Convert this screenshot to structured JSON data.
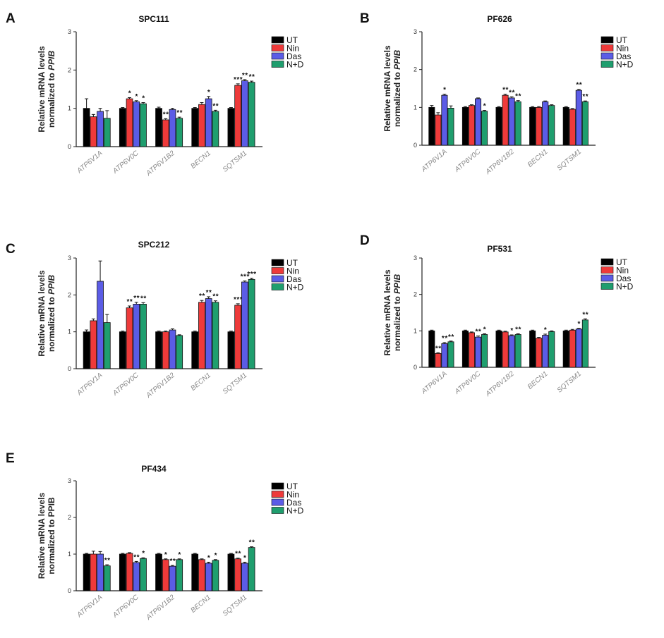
{
  "figure": {
    "series_names": [
      "UT",
      "Nin",
      "Das",
      "N+D"
    ],
    "colors": {
      "UT": "#000000",
      "Nin": "#ee3a3a",
      "Das": "#5b5ce6",
      "N+D": "#1f9e6e"
    }
  },
  "chart_data": [
    {
      "panel": "A",
      "type": "bar",
      "title": "SPC111",
      "ylabel_line1": "Relative mRNA levels",
      "ylabel_line2_prefix": "normalized to ",
      "ylabel_line2_gene": "PPIB",
      "ylim": [
        0,
        3
      ],
      "yticks": [
        "0",
        "1",
        "2",
        "3"
      ],
      "categories": [
        "ATP6V1A",
        "ATP6V0C",
        "ATP6V1B2",
        "BECN1",
        "SQTSM1"
      ],
      "series": [
        {
          "name": "UT",
          "values": [
            1.0,
            1.0,
            1.0,
            1.0,
            1.0
          ],
          "errors": [
            0.25,
            0.02,
            0.03,
            0.02,
            0.02
          ]
        },
        {
          "name": "Nin",
          "values": [
            0.78,
            1.25,
            0.7,
            1.1,
            1.6
          ],
          "errors": [
            0.06,
            0.03,
            0.03,
            0.05,
            0.04
          ]
        },
        {
          "name": "Das",
          "values": [
            0.92,
            1.17,
            0.97,
            1.25,
            1.72
          ],
          "errors": [
            0.08,
            0.03,
            0.03,
            0.06,
            0.03
          ]
        },
        {
          "name": "N+D",
          "values": [
            0.74,
            1.12,
            0.74,
            0.92,
            1.68
          ],
          "errors": [
            0.2,
            0.03,
            0.03,
            0.03,
            0.03
          ]
        }
      ],
      "significance": [
        [
          "",
          "",
          "",
          ""
        ],
        [
          "",
          "*",
          "*",
          "*"
        ],
        [
          "",
          "**",
          "",
          "**"
        ],
        [
          "",
          "",
          "*",
          "**"
        ],
        [
          "",
          "***",
          "**",
          "**"
        ]
      ]
    },
    {
      "panel": "B",
      "type": "bar",
      "title": "PF626",
      "ylabel_line1": "Relative mRNA levels",
      "ylabel_line2_prefix": "normalized to ",
      "ylabel_line2_gene": "PPIB",
      "ylim": [
        0,
        3
      ],
      "yticks": [
        "0",
        "1",
        "2",
        "3"
      ],
      "categories": [
        "ATP6V1A",
        "ATP6V0C",
        "ATP6V1B2",
        "BECN1",
        "SQTSM1"
      ],
      "series": [
        {
          "name": "UT",
          "values": [
            1.0,
            1.0,
            1.0,
            1.0,
            1.0
          ],
          "errors": [
            0.05,
            0.02,
            0.02,
            0.02,
            0.02
          ]
        },
        {
          "name": "Nin",
          "values": [
            0.8,
            1.05,
            1.32,
            1.0,
            0.95
          ],
          "errors": [
            0.06,
            0.02,
            0.03,
            0.02,
            0.02
          ]
        },
        {
          "name": "Das",
          "values": [
            1.32,
            1.23,
            1.25,
            1.15,
            1.45
          ],
          "errors": [
            0.03,
            0.02,
            0.03,
            0.02,
            0.03
          ]
        },
        {
          "name": "N+D",
          "values": [
            0.98,
            0.9,
            1.15,
            1.05,
            1.15
          ],
          "errors": [
            0.06,
            0.02,
            0.03,
            0.02,
            0.02
          ]
        }
      ],
      "significance": [
        [
          "",
          "",
          "*",
          ""
        ],
        [
          "",
          "",
          "",
          "*"
        ],
        [
          "",
          "**",
          "**",
          "**"
        ],
        [
          "",
          "",
          "",
          ""
        ],
        [
          "",
          "",
          "**",
          "**"
        ]
      ]
    },
    {
      "panel": "C",
      "type": "bar",
      "title": "SPC212",
      "ylabel_line1": "Relative mRNA levels",
      "ylabel_line2_prefix": "normalized to ",
      "ylabel_line2_gene": "PPIB",
      "ylim": [
        0,
        3
      ],
      "yticks": [
        "0",
        "1",
        "2",
        "3"
      ],
      "categories": [
        "ATP6V1A",
        "ATP6V0C",
        "ATP6V1B2",
        "BECN1",
        "SQTSM1"
      ],
      "series": [
        {
          "name": "UT",
          "values": [
            1.0,
            1.0,
            1.0,
            1.0,
            1.0
          ],
          "errors": [
            0.05,
            0.02,
            0.02,
            0.02,
            0.02
          ]
        },
        {
          "name": "Nin",
          "values": [
            1.3,
            1.65,
            1.0,
            1.8,
            1.72
          ],
          "errors": [
            0.05,
            0.05,
            0.02,
            0.05,
            0.04
          ]
        },
        {
          "name": "Das",
          "values": [
            2.37,
            1.75,
            1.05,
            1.9,
            2.35
          ],
          "errors": [
            0.55,
            0.05,
            0.03,
            0.05,
            0.03
          ]
        },
        {
          "name": "N+D",
          "values": [
            1.25,
            1.75,
            0.9,
            1.8,
            2.42
          ],
          "errors": [
            0.22,
            0.04,
            0.02,
            0.04,
            0.03
          ]
        }
      ],
      "significance": [
        [
          "",
          "",
          "",
          ""
        ],
        [
          "",
          "**",
          "**",
          "**"
        ],
        [
          "",
          "",
          "",
          ""
        ],
        [
          "",
          "**",
          "**",
          "**"
        ],
        [
          "",
          "***",
          "***",
          "***"
        ]
      ]
    },
    {
      "panel": "D",
      "type": "bar",
      "title": "PF531",
      "ylabel_line1": "Relative mRNA levels",
      "ylabel_line2_prefix": "normalized to ",
      "ylabel_line2_gene": "PPIB",
      "ylim": [
        0,
        3
      ],
      "yticks": [
        "0",
        "1",
        "2",
        "3"
      ],
      "categories": [
        "ATP6V1A",
        "ATP6V0C",
        "ATP6V1B2",
        "BECN1",
        "SQTSM1"
      ],
      "series": [
        {
          "name": "UT",
          "values": [
            1.0,
            1.0,
            1.0,
            1.0,
            1.0
          ],
          "errors": [
            0.02,
            0.02,
            0.02,
            0.02,
            0.02
          ]
        },
        {
          "name": "Nin",
          "values": [
            0.38,
            0.95,
            0.97,
            0.8,
            1.02
          ],
          "errors": [
            0.02,
            0.02,
            0.02,
            0.02,
            0.02
          ]
        },
        {
          "name": "Das",
          "values": [
            0.65,
            0.83,
            0.87,
            0.88,
            1.05
          ],
          "errors": [
            0.03,
            0.03,
            0.02,
            0.03,
            0.02
          ]
        },
        {
          "name": "N+D",
          "values": [
            0.7,
            0.9,
            0.9,
            0.98,
            1.3
          ],
          "errors": [
            0.02,
            0.02,
            0.02,
            0.02,
            0.03
          ]
        }
      ],
      "significance": [
        [
          "",
          "**",
          "**",
          "**"
        ],
        [
          "",
          "",
          "**",
          "*"
        ],
        [
          "",
          "",
          "*",
          "**"
        ],
        [
          "",
          "",
          "*",
          ""
        ],
        [
          "",
          "",
          "*",
          "**"
        ]
      ]
    },
    {
      "panel": "E",
      "type": "bar",
      "title": "PF434",
      "ylabel_line1": "Relative mRNA levels",
      "ylabel_line2_prefix": "normalized to PPIB",
      "ylabel_line2_gene": "",
      "ylim": [
        0,
        3
      ],
      "yticks": [
        "0",
        "1",
        "2",
        "3"
      ],
      "categories": [
        "ATP6V1A",
        "ATP6V0C",
        "ATP6V1B2",
        "BECN1",
        "SQTSM1"
      ],
      "series": [
        {
          "name": "UT",
          "values": [
            1.0,
            1.0,
            1.0,
            1.0,
            1.0
          ],
          "errors": [
            0.02,
            0.02,
            0.02,
            0.02,
            0.02
          ]
        },
        {
          "name": "Nin",
          "values": [
            1.0,
            1.02,
            0.85,
            0.85,
            0.87
          ],
          "errors": [
            0.08,
            0.02,
            0.02,
            0.02,
            0.02
          ]
        },
        {
          "name": "Das",
          "values": [
            1.0,
            0.77,
            0.67,
            0.75,
            0.75
          ],
          "errors": [
            0.07,
            0.03,
            0.02,
            0.03,
            0.03
          ]
        },
        {
          "name": "N+D",
          "values": [
            0.68,
            0.88,
            0.85,
            0.83,
            1.18
          ],
          "errors": [
            0.03,
            0.02,
            0.02,
            0.02,
            0.02
          ]
        }
      ],
      "significance": [
        [
          "",
          "",
          "",
          "**"
        ],
        [
          "",
          "",
          "**",
          "*"
        ],
        [
          "",
          "*",
          "**",
          "*"
        ],
        [
          "",
          "",
          "*",
          "*"
        ],
        [
          "",
          "**",
          "*",
          "**"
        ]
      ]
    }
  ]
}
